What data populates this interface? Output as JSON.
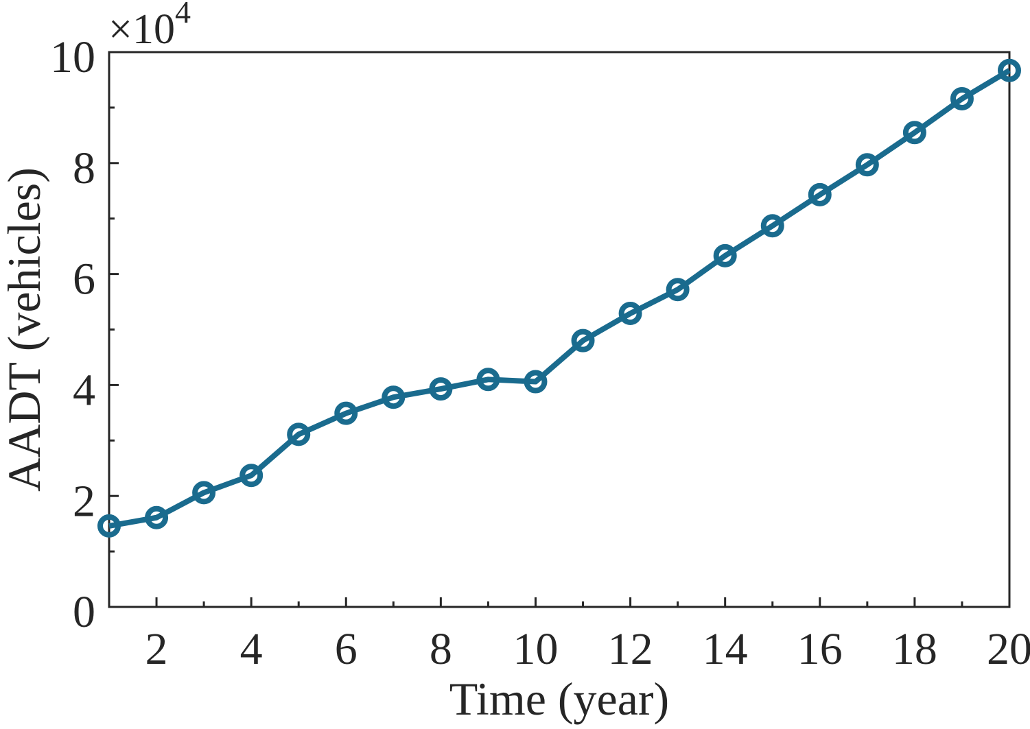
{
  "page": {
    "background": "#ffffff"
  },
  "chart_data": {
    "type": "line",
    "title": "",
    "xlabel": "Time (year)",
    "ylabel": "AADT (vehicles)",
    "y_offset_label": "×10",
    "y_offset_exponent": "4",
    "x": [
      1,
      2,
      3,
      4,
      5,
      6,
      7,
      8,
      9,
      10,
      11,
      12,
      13,
      14,
      15,
      16,
      17,
      18,
      19,
      20
    ],
    "y": [
      14600,
      16100,
      20600,
      23700,
      31100,
      34900,
      37800,
      39300,
      41000,
      40600,
      48000,
      52900,
      57200,
      63300,
      68700,
      74300,
      79700,
      85500,
      91600,
      96700
    ],
    "xlim": [
      1,
      20
    ],
    "ylim": [
      0,
      100000
    ],
    "x_tick_values": [
      2,
      4,
      6,
      8,
      10,
      12,
      14,
      16,
      18,
      20
    ],
    "x_tick_labels": [
      "2",
      "4",
      "6",
      "8",
      "10",
      "12",
      "14",
      "16",
      "18",
      "20"
    ],
    "x_minor_tick_values": [
      3,
      5,
      7,
      9,
      11,
      13,
      15,
      17,
      19
    ],
    "y_tick_values": [
      0,
      20000,
      40000,
      60000,
      80000,
      100000
    ],
    "y_tick_labels": [
      "0",
      "2",
      "4",
      "6",
      "8",
      "10"
    ],
    "y_minor_tick_values": [
      10000,
      30000,
      50000,
      70000,
      90000
    ],
    "grid": "off",
    "legend": "none",
    "box": "on",
    "style": {
      "line_color": "#1A6B8E",
      "line_width": 8,
      "marker": "open-circle",
      "marker_fill": "none",
      "marker_radius": 13,
      "marker_stroke_width": 8,
      "axis_color": "#262626",
      "text_color": "#262626",
      "background": "#ffffff"
    }
  }
}
